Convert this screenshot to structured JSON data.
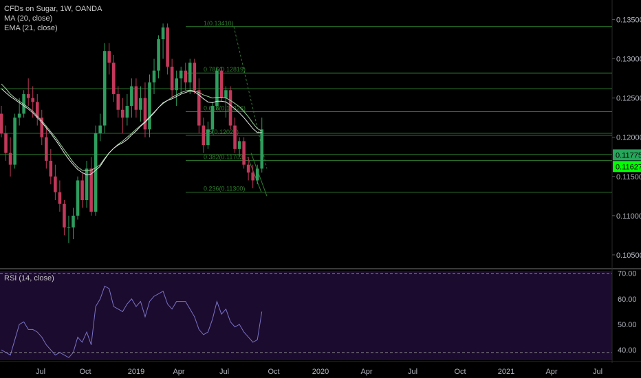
{
  "legend": {
    "title": "CFDs on Sugar, 1W, OANDA",
    "ma": "MA (20, close)",
    "ema": "EMA (21, close)",
    "rsi": "RSI (14, close)"
  },
  "colors": {
    "background": "#000000",
    "rsi_background": "#1b0b2e",
    "up": "#2e9d5e",
    "down": "#c2385a",
    "ma": "#9bd39b",
    "ema": "#e8e8e8",
    "fib": "#2f7d2f",
    "rsi_line": "#7b73c9",
    "axis_text": "#b2b5be",
    "price_label_1": "#26a65b",
    "price_label_2": "#00ff00"
  },
  "price_axis": {
    "ticks": [
      "0.13500",
      "0.13000",
      "0.12500",
      "0.12000",
      "0.11500",
      "0.11000",
      "0.10500"
    ],
    "tick_values": [
      0.135,
      0.13,
      0.125,
      0.12,
      0.115,
      0.11,
      0.105
    ],
    "labels": [
      {
        "text": "0.11775",
        "value": 0.11775,
        "color": "#26a65b"
      },
      {
        "text": "0.11627",
        "value": 0.11627,
        "color": "#00ff00"
      }
    ]
  },
  "rsi_axis": {
    "ticks": [
      "70.00",
      "60.00",
      "50.00",
      "40.00"
    ],
    "tick_values": [
      70,
      60,
      50,
      40
    ],
    "bands": [
      70,
      39
    ]
  },
  "time_axis": {
    "labels": [
      "Jul",
      "Oct",
      "2019",
      "Apr",
      "Jul",
      "Oct",
      "2020",
      "Apr",
      "Jul",
      "Oct",
      "2021",
      "Apr",
      "Jul"
    ]
  },
  "fib_levels": [
    {
      "text": "1(0.13410)",
      "value": 0.1341
    },
    {
      "text": "0.786(0.12819)",
      "value": 0.12819
    },
    {
      "text": "0.618(0.12326)",
      "value": 0.12326
    },
    {
      "text": "0.5(0.12025)",
      "value": 0.12025
    },
    {
      "text": "0.382(0.11703)",
      "value": 0.11703
    },
    {
      "text": "0.236(0.11300)",
      "value": 0.113
    }
  ],
  "extra_lines": [
    0.1262,
    0.1205,
    0.1178
  ],
  "chart_data": {
    "type": "candlestick",
    "title": "CFDs on Sugar, 1W, OANDA",
    "ylim": [
      0.1035,
      0.1375
    ],
    "rsi_ylim": [
      36,
      71
    ],
    "ohlc": [
      [
        0.123,
        0.124,
        0.12,
        0.1205
      ],
      [
        0.1205,
        0.1215,
        0.117,
        0.118
      ],
      [
        0.118,
        0.12,
        0.115,
        0.1165
      ],
      [
        0.1165,
        0.123,
        0.116,
        0.1225
      ],
      [
        0.1225,
        0.125,
        0.1215,
        0.123
      ],
      [
        0.123,
        0.126,
        0.1225,
        0.1255
      ],
      [
        0.1255,
        0.1275,
        0.124,
        0.125
      ],
      [
        0.125,
        0.1265,
        0.1225,
        0.1245
      ],
      [
        0.1245,
        0.1255,
        0.1215,
        0.1225
      ],
      [
        0.1225,
        0.1235,
        0.119,
        0.12
      ],
      [
        0.12,
        0.1215,
        0.116,
        0.117
      ],
      [
        0.117,
        0.1185,
        0.114,
        0.115
      ],
      [
        0.115,
        0.1165,
        0.112,
        0.113
      ],
      [
        0.113,
        0.1145,
        0.1105,
        0.1115
      ],
      [
        0.1115,
        0.112,
        0.1075,
        0.1085
      ],
      [
        0.1085,
        0.11,
        0.1065,
        0.1085
      ],
      [
        0.1085,
        0.111,
        0.107,
        0.11
      ],
      [
        0.11,
        0.115,
        0.1095,
        0.1145
      ],
      [
        0.1145,
        0.1155,
        0.111,
        0.112
      ],
      [
        0.112,
        0.117,
        0.111,
        0.116
      ],
      [
        0.116,
        0.1175,
        0.11,
        0.1105
      ],
      [
        0.1105,
        0.1215,
        0.11,
        0.1205
      ],
      [
        0.1205,
        0.123,
        0.1195,
        0.1215
      ],
      [
        0.1215,
        0.132,
        0.1205,
        0.131
      ],
      [
        0.131,
        0.132,
        0.128,
        0.1295
      ],
      [
        0.1295,
        0.1305,
        0.1245,
        0.1255
      ],
      [
        0.1255,
        0.1265,
        0.1225,
        0.1235
      ],
      [
        0.1235,
        0.125,
        0.1205,
        0.1225
      ],
      [
        0.1225,
        0.1255,
        0.1215,
        0.124
      ],
      [
        0.124,
        0.1275,
        0.1225,
        0.1265
      ],
      [
        0.1265,
        0.1275,
        0.1225,
        0.1235
      ],
      [
        0.1235,
        0.1265,
        0.122,
        0.125
      ],
      [
        0.125,
        0.127,
        0.12,
        0.121
      ],
      [
        0.121,
        0.128,
        0.12,
        0.127
      ],
      [
        0.127,
        0.13,
        0.1255,
        0.1285
      ],
      [
        0.1285,
        0.133,
        0.1275,
        0.1325
      ],
      [
        0.1325,
        0.1345,
        0.13,
        0.134
      ],
      [
        0.134,
        0.1345,
        0.128,
        0.129
      ],
      [
        0.129,
        0.13,
        0.125,
        0.126
      ],
      [
        0.126,
        0.1285,
        0.124,
        0.1275
      ],
      [
        0.1275,
        0.129,
        0.1255,
        0.1285
      ],
      [
        0.1285,
        0.1295,
        0.126,
        0.127
      ],
      [
        0.127,
        0.13,
        0.1255,
        0.1295
      ],
      [
        0.1295,
        0.13,
        0.1255,
        0.126
      ],
      [
        0.126,
        0.1275,
        0.1205,
        0.1215
      ],
      [
        0.1215,
        0.1225,
        0.118,
        0.119
      ],
      [
        0.119,
        0.122,
        0.1185,
        0.121
      ],
      [
        0.121,
        0.1245,
        0.1205,
        0.124
      ],
      [
        0.124,
        0.129,
        0.1235,
        0.1285
      ],
      [
        0.1285,
        0.129,
        0.1245,
        0.125
      ],
      [
        0.125,
        0.1265,
        0.1225,
        0.126
      ],
      [
        0.126,
        0.1265,
        0.121,
        0.1215
      ],
      [
        0.1215,
        0.1225,
        0.118,
        0.1185
      ],
      [
        0.1185,
        0.12,
        0.1175,
        0.1195
      ],
      [
        0.1195,
        0.12,
        0.116,
        0.1165
      ],
      [
        0.1165,
        0.1175,
        0.1145,
        0.1155
      ],
      [
        0.1155,
        0.1165,
        0.1135,
        0.1145
      ],
      [
        0.1145,
        0.1165,
        0.114,
        0.116
      ],
      [
        0.116,
        0.1225,
        0.1155,
        0.121
      ]
    ],
    "ma20": [
      0.1268,
      0.1262,
      0.1255,
      0.125,
      0.1246,
      0.1242,
      0.1238,
      0.1233,
      0.1227,
      0.1221,
      0.1214,
      0.1207,
      0.12,
      0.1192,
      0.1184,
      0.1176,
      0.1168,
      0.1162,
      0.1158,
      0.1157,
      0.1158,
      0.1161,
      0.1165,
      0.1173,
      0.118,
      0.1186,
      0.1191,
      0.1195,
      0.12,
      0.1205,
      0.121,
      0.1215,
      0.122,
      0.1226,
      0.1232,
      0.1238,
      0.1243,
      0.1247,
      0.1251,
      0.1254,
      0.1257,
      0.1259,
      0.126,
      0.1259,
      0.1257,
      0.1254,
      0.1252,
      0.125,
      0.1251,
      0.1251,
      0.125,
      0.1247,
      0.1243,
      0.1239,
      0.1233,
      0.1226,
      0.1218,
      0.1211,
      0.1208
    ],
    "ema21": [
      0.1262,
      0.1257,
      0.1252,
      0.1248,
      0.1244,
      0.124,
      0.1236,
      0.1231,
      0.1225,
      0.1219,
      0.1212,
      0.1205,
      0.1197,
      0.1189,
      0.118,
      0.1172,
      0.1165,
      0.1159,
      0.1155,
      0.1152,
      0.1153,
      0.1158,
      0.1163,
      0.1172,
      0.118,
      0.1186,
      0.119,
      0.1193,
      0.1197,
      0.1203,
      0.1208,
      0.1214,
      0.1219,
      0.1225,
      0.1231,
      0.1238,
      0.1244,
      0.1247,
      0.1249,
      0.1252,
      0.1255,
      0.1257,
      0.1259,
      0.1258,
      0.1254,
      0.1249,
      0.1245,
      0.1244,
      0.1246,
      0.1246,
      0.1245,
      0.1241,
      0.1236,
      0.1231,
      0.1225,
      0.1218,
      0.1211,
      0.1206,
      0.1206
    ],
    "rsi": [
      40,
      39,
      38,
      44,
      50,
      51,
      48,
      48,
      47,
      45,
      42,
      40,
      38,
      39,
      38,
      37,
      39,
      45,
      43,
      47,
      42,
      57,
      60,
      65,
      64,
      57,
      56,
      55,
      58,
      60,
      57,
      59,
      53,
      59,
      61,
      62,
      63,
      58,
      56,
      59,
      59,
      59,
      56,
      53,
      48,
      46,
      47,
      52,
      59,
      54,
      56,
      51,
      49,
      50,
      47,
      45,
      43,
      44,
      55
    ]
  }
}
